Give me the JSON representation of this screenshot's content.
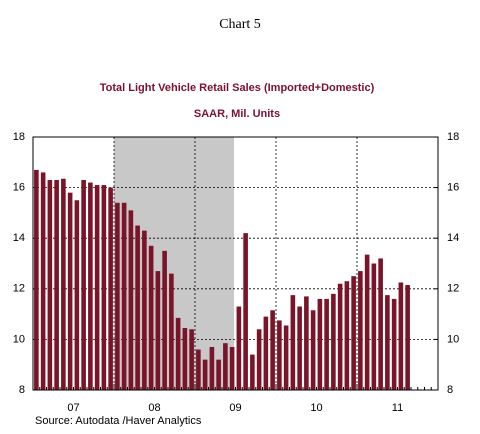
{
  "chart_data": {
    "type": "bar",
    "title": "Chart 5",
    "subtitle": [
      "Total Light Vehicle Retail Sales (Imported+Domestic)",
      "SAAR, Mil. Units"
    ],
    "source": "Source:  Autodata /Haver Analytics",
    "categories": [
      null,
      null,
      null,
      null,
      null,
      null,
      null,
      null,
      null,
      null,
      null,
      null,
      null,
      null,
      null,
      null,
      null,
      null,
      null,
      null,
      null,
      null,
      null,
      null,
      null,
      null,
      null,
      null,
      null,
      null,
      null,
      null,
      null,
      null,
      null,
      null,
      null,
      null,
      null,
      null,
      null,
      null,
      null,
      null,
      null,
      null,
      null,
      null,
      null,
      null,
      null,
      null,
      null,
      null,
      null,
      null
    ],
    "year_labels": [
      "07",
      "08",
      "09",
      "10",
      "11"
    ],
    "values": [
      16.7,
      16.6,
      16.3,
      16.3,
      16.35,
      15.8,
      15.5,
      16.3,
      16.2,
      16.1,
      16.1,
      16.0,
      15.4,
      15.4,
      15.1,
      14.5,
      14.3,
      13.7,
      12.7,
      13.5,
      12.6,
      10.85,
      10.45,
      10.4,
      9.6,
      9.2,
      9.7,
      9.2,
      9.85,
      9.7,
      11.3,
      14.2,
      9.4,
      10.4,
      10.9,
      11.15,
      10.75,
      10.55,
      11.75,
      11.3,
      11.7,
      11.15,
      11.6,
      11.6,
      11.8,
      12.2,
      12.3,
      12.5,
      12.7,
      13.35,
      13.0,
      13.2,
      11.75,
      11.6,
      12.25,
      12.15
    ],
    "color": "#7a1428",
    "ylim": [
      8,
      18
    ],
    "yticks": [
      8,
      10,
      12,
      14,
      16,
      18
    ],
    "y2lim": [
      8,
      18
    ],
    "y2ticks": [
      8,
      10,
      12,
      14,
      16,
      18
    ],
    "grid": true
  }
}
